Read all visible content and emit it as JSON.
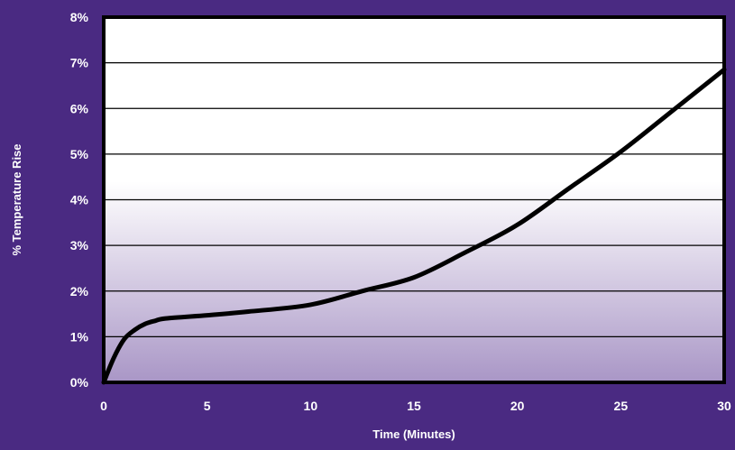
{
  "colors": {
    "background": "#4a2a82",
    "plot_top": "#ffffff",
    "plot_bottom": "#a996c6",
    "line": "#000000",
    "text": "#ffffff"
  },
  "chart_data": {
    "type": "line",
    "title": "",
    "xlabel": "Time (Minutes)",
    "ylabel": "% Temperature Rise",
    "xlim": [
      0,
      30
    ],
    "ylim": [
      0,
      8
    ],
    "x_ticks": [
      0,
      5,
      10,
      15,
      20,
      25,
      30
    ],
    "x_tick_labels": [
      "0",
      "5",
      "10",
      "15",
      "20",
      "25",
      "30"
    ],
    "y_ticks": [
      0,
      1,
      2,
      3,
      4,
      5,
      6,
      7,
      8
    ],
    "y_tick_labels": [
      "0%",
      "1%",
      "2%",
      "3%",
      "4%",
      "5%",
      "6%",
      "7%",
      "8%"
    ],
    "grid": "horizontal",
    "legend": "none",
    "series": [
      {
        "x": [
          0,
          0.5,
          1,
          1.5,
          2,
          2.5,
          3,
          5,
          7,
          10,
          12.5,
          15,
          17.5,
          20,
          22.5,
          25,
          27.5,
          30
        ],
        "values": [
          0,
          0.55,
          0.95,
          1.15,
          1.28,
          1.35,
          1.4,
          1.47,
          1.55,
          1.7,
          2.0,
          2.3,
          2.85,
          3.45,
          4.25,
          5.05,
          5.95,
          6.85
        ]
      }
    ]
  }
}
